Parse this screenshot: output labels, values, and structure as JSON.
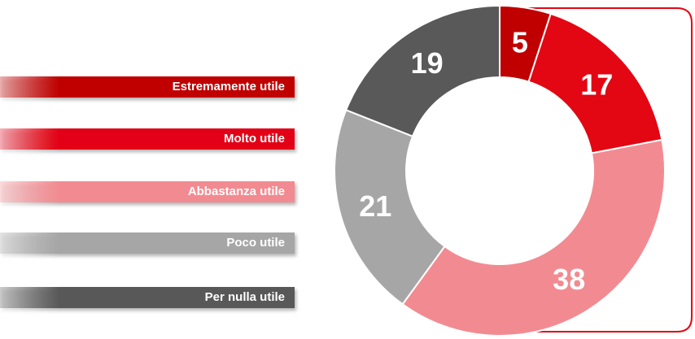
{
  "chart_data": {
    "type": "donut",
    "categories": [
      "Estremamente utile",
      "Molto utile",
      "Abbastanza utile",
      "Poco utile",
      "Per nulla utile"
    ],
    "values": [
      5,
      17,
      38,
      21,
      19
    ],
    "colors": [
      "#c00000",
      "#e30613",
      "#f28b91",
      "#a6a6a6",
      "#595959"
    ]
  }
}
